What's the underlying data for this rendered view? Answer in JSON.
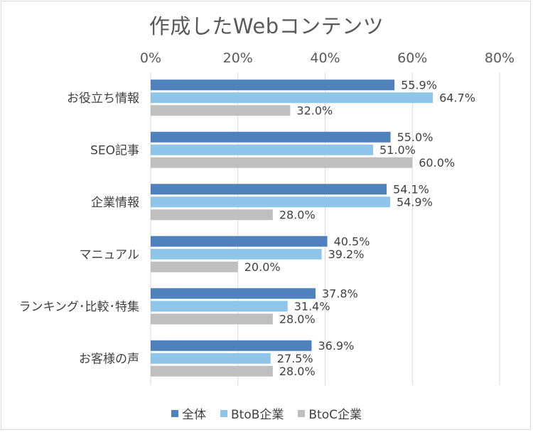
{
  "chart_data": {
    "type": "bar",
    "orientation": "horizontal",
    "title": "作成したWebコンテンツ",
    "categories": [
      "お役立ち情報",
      "SEO記事",
      "企業情報",
      "マニュアル",
      "ランキング･比較･特集",
      "お客様の声"
    ],
    "series": [
      {
        "name": "全体",
        "color": "#4f81bd",
        "values": [
          55.9,
          55.0,
          54.1,
          40.5,
          37.8,
          36.9
        ]
      },
      {
        "name": "BtoB企業",
        "color": "#8ec5e8",
        "values": [
          64.7,
          51.0,
          54.9,
          39.2,
          31.4,
          27.5
        ]
      },
      {
        "name": "BtoC企業",
        "color": "#bfbfbf",
        "values": [
          32.0,
          60.0,
          28.0,
          20.0,
          28.0,
          28.0
        ]
      }
    ],
    "xlim": [
      0,
      80
    ],
    "xticks": [
      0,
      20,
      40,
      60,
      80
    ],
    "tick_suffix": "%",
    "label_suffix": "%",
    "label_decimals": 1,
    "grid": true,
    "legend_position": "bottom"
  }
}
